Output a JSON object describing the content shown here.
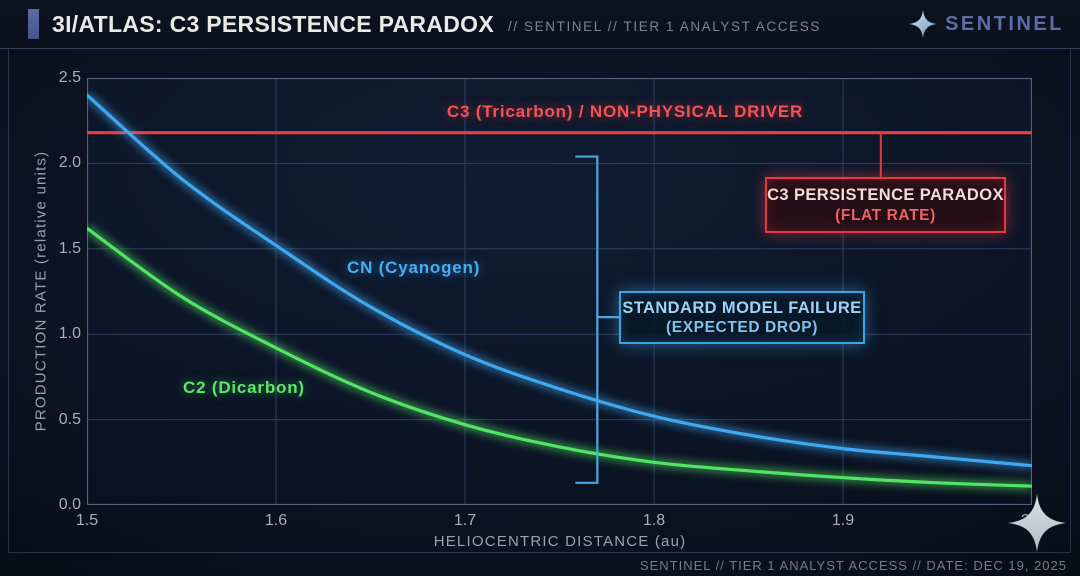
{
  "header": {
    "title": "3I/ATLAS: C3 PERSISTENCE PARADOX",
    "subtitle": "// SENTINEL // TIER 1 ANALYST ACCESS",
    "brand": "SENTINEL"
  },
  "footer": {
    "text": "SENTINEL // TIER 1 ANALYST ACCESS // DATE: DEC 19, 2025"
  },
  "colors": {
    "c3_red": "#f03c40",
    "cn_blue": "#3fa9f0",
    "c2_green": "#52e464",
    "grid": "#35466b",
    "plot_border": "#55617a",
    "accent_bar": "#52629a"
  },
  "chart_data": {
    "type": "line",
    "xlabel": "HELIOCENTRIC DISTANCE (au)",
    "ylabel": "PRODUCTION RATE (relative units)",
    "xlim": [
      1.5,
      2.0
    ],
    "ylim": [
      0.0,
      2.5
    ],
    "x_ticks": [
      "1.5",
      "1.6",
      "1.7",
      "1.8",
      "1.9",
      "2.0"
    ],
    "y_ticks": [
      "0.0",
      "0.5",
      "1.0",
      "1.5",
      "2.0",
      "2.5"
    ],
    "grid": true,
    "x": [
      1.5,
      1.55,
      1.6,
      1.65,
      1.7,
      1.75,
      1.8,
      1.85,
      1.9,
      1.95,
      2.0
    ],
    "series": [
      {
        "name": "C3 (Tricarbon)",
        "label": "C3 (Tricarbon) / NON-PHYSICAL DRIVER",
        "color": "#f03c40",
        "values": [
          2.18,
          2.18,
          2.18,
          2.18,
          2.18,
          2.18,
          2.18,
          2.18,
          2.18,
          2.18,
          2.18
        ]
      },
      {
        "name": "CN (Cyanogen)",
        "label": "CN (Cyanogen)",
        "color": "#3fa9f0",
        "values": [
          2.4,
          1.91,
          1.52,
          1.16,
          0.88,
          0.68,
          0.52,
          0.41,
          0.33,
          0.28,
          0.23
        ]
      },
      {
        "name": "C2 (Dicarbon)",
        "label": "C2 (Dicarbon)",
        "color": "#52e464",
        "values": [
          1.62,
          1.22,
          0.92,
          0.66,
          0.47,
          0.34,
          0.25,
          0.2,
          0.16,
          0.13,
          0.11
        ]
      }
    ],
    "annotations": {
      "red_callout": {
        "line1": "C3 PERSISTENCE PARADOX",
        "line2": "(FLAT RATE)",
        "connector_x": 1.92
      },
      "blue_callout": {
        "line1": "STANDARD MODEL FAILURE",
        "line2": "(EXPECTED DROP)"
      },
      "bracket": {
        "x": 1.77,
        "y_top": 2.04,
        "y_bottom": 0.13,
        "tick_y": 1.1
      }
    }
  }
}
